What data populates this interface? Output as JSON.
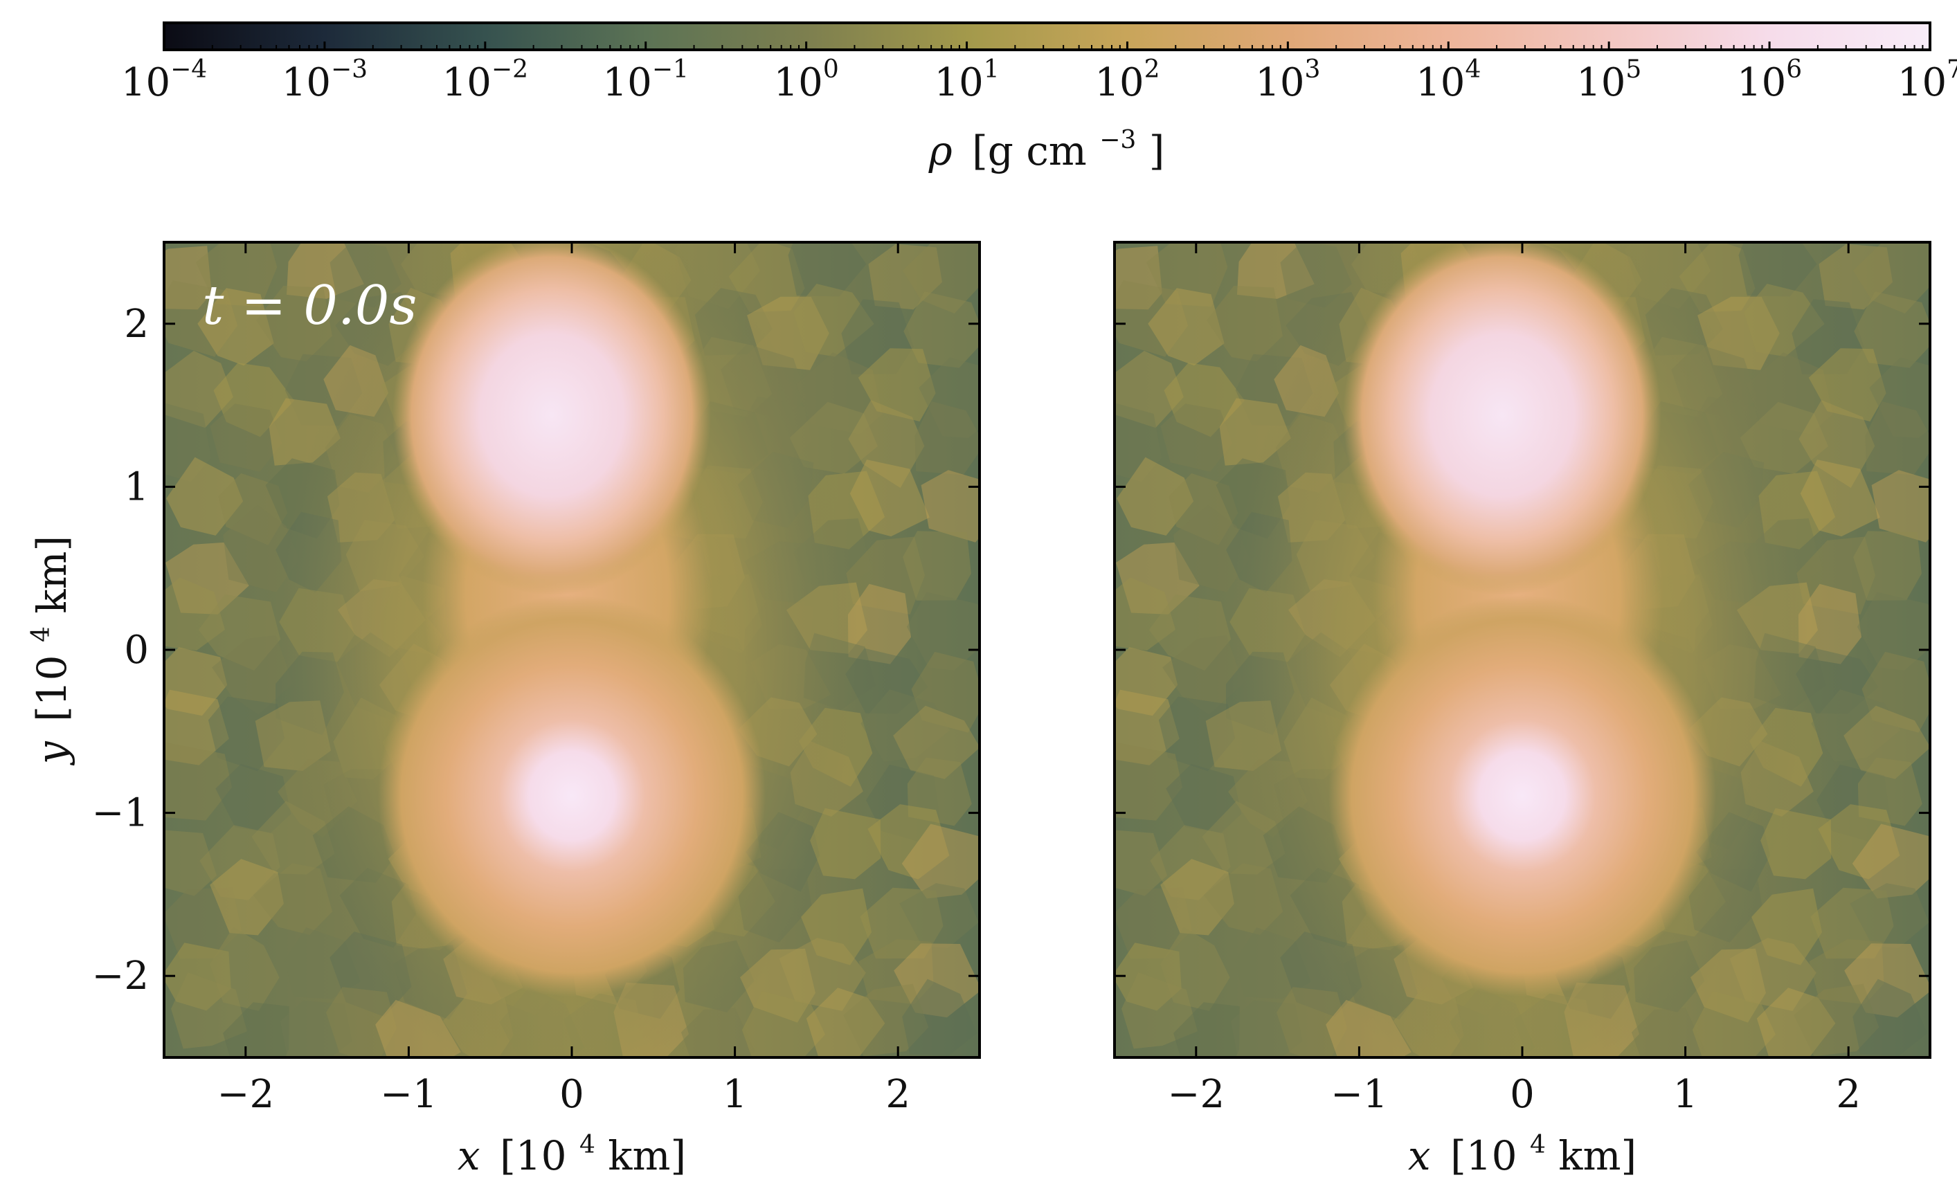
{
  "figure": {
    "colorbar": {
      "label_symbol": "ρ",
      "label_units": "[g cm",
      "label_units_exp": "−3",
      "label_units_close": "]",
      "scale": "log",
      "range_exponents": [
        -4,
        7
      ],
      "tick_base": "10",
      "tick_exponents": [
        "−4",
        "−3",
        "−2",
        "−1",
        "0",
        "1",
        "2",
        "3",
        "4",
        "5",
        "6",
        "7"
      ],
      "colormap": "cubehelix",
      "colors": [
        "#0b0b14",
        "#1d2a3a",
        "#36524f",
        "#5c7355",
        "#7d7f4f",
        "#a3994b",
        "#c8a55a",
        "#e0a877",
        "#eeb59a",
        "#f3c7c2",
        "#f6dcea",
        "#f8ecf8"
      ]
    },
    "panels": [
      {
        "name": "left",
        "time_label": "t = 0.0s",
        "x_ticks": [
          "−2",
          "−1",
          "0",
          "1",
          "2"
        ],
        "y_ticks": [
          "2",
          "1",
          "0",
          "−1",
          "−2"
        ],
        "show_y_axis_labels": true,
        "x_label_symbol": "x",
        "x_label_units": "[10",
        "x_label_exp": "4",
        "x_label_tail": " km]",
        "y_label_symbol": "y",
        "y_label_units": "[10",
        "y_label_exp": "4",
        "y_label_tail": " km]"
      },
      {
        "name": "right",
        "time_label": "",
        "x_ticks": [
          "−2",
          "−1",
          "0",
          "1",
          "2"
        ],
        "y_ticks": [],
        "show_y_axis_labels": false,
        "x_label_symbol": "x",
        "x_label_units": "[10",
        "x_label_exp": "4",
        "x_label_tail": " km]"
      }
    ]
  },
  "chart_data": {
    "type": "heatmap",
    "description_of_field": "density projection of binary white dwarf system",
    "xlim": [
      -2.5,
      2.5
    ],
    "ylim": [
      -2.5,
      2.5
    ],
    "x_ticks": [
      -2,
      -1,
      0,
      1,
      2
    ],
    "y_ticks": [
      -2,
      -1,
      0,
      1,
      2
    ],
    "colorbar_log10_range": [
      -4,
      7
    ],
    "panels": [
      {
        "name": "left",
        "time": "0.0s",
        "blobs": [
          {
            "x": -0.15,
            "y": 1.4,
            "peak_log10_rho": 6.5
          },
          {
            "x": 0.05,
            "y": -0.85,
            "peak_log10_rho": 6.8
          }
        ],
        "background_log10_rho": 1.0
      },
      {
        "name": "right",
        "blobs": [
          {
            "x": -0.15,
            "y": 1.4,
            "peak_log10_rho": 6.5
          },
          {
            "x": 0.05,
            "y": -0.85,
            "peak_log10_rho": 6.8
          }
        ],
        "background_log10_rho": 1.0
      }
    ]
  }
}
